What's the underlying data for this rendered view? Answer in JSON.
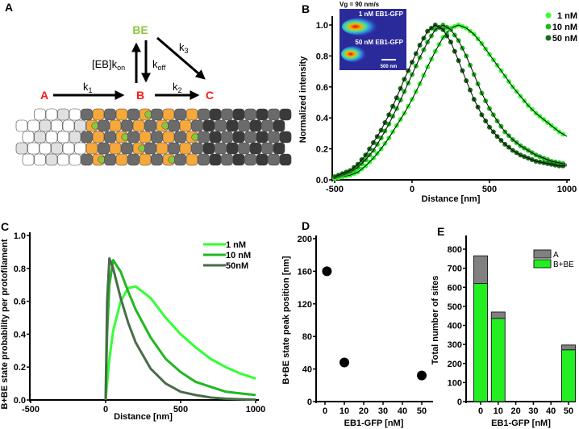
{
  "panels": {
    "a": "A",
    "b": "B",
    "c": "C",
    "d": "D",
    "e": "E"
  },
  "diagram": {
    "state_a": "A",
    "state_b": "B",
    "state_c": "C",
    "state_be": "BE",
    "k1": "k",
    "k1_sub": "1",
    "k2": "k",
    "k2_sub": "2",
    "k3": "k",
    "k3_sub": "3",
    "kon": "[EB]k",
    "kon_sub": "on",
    "koff": "k",
    "koff_sub": "off",
    "colors": {
      "red": "#ff1a1a",
      "green": "#8cc63f",
      "orange": "#f7a83a",
      "gray": "#6b6b6b",
      "dark": "#3a3a3a",
      "light": "#e6e6e6"
    }
  },
  "chart_data": [
    {
      "id": "B",
      "type": "scatter+line",
      "xlabel": "Distance [nm]",
      "ylabel": "Normalized intensity",
      "xlim": [
        -500,
        1000
      ],
      "ylim": [
        0,
        1.0
      ],
      "xticks": [
        "-500",
        "0",
        "500",
        "1000"
      ],
      "yticks": [
        "0.0",
        "0.2",
        "0.4",
        "0.6",
        "0.8",
        "1.0"
      ],
      "inset": {
        "speed": "Vg = 90 nm/s",
        "label1": "1 nM EB1-GFP",
        "label2": "50 nM EB1-GFP",
        "scale": "500 nm"
      },
      "legend_position": "top-right",
      "x": [
        -500,
        -450,
        -400,
        -350,
        -300,
        -250,
        -200,
        -150,
        -100,
        -50,
        0,
        50,
        100,
        150,
        200,
        250,
        300,
        350,
        400,
        450,
        500,
        550,
        600,
        650,
        700,
        750,
        800,
        850,
        900,
        950,
        1000
      ],
      "series": [
        {
          "name": "1 nM",
          "color": "#33ff33",
          "values": [
            0.01,
            0.02,
            0.03,
            0.05,
            0.09,
            0.14,
            0.2,
            0.27,
            0.35,
            0.43,
            0.52,
            0.62,
            0.73,
            0.83,
            0.92,
            0.98,
            1.0,
            0.98,
            0.94,
            0.88,
            0.81,
            0.74,
            0.67,
            0.6,
            0.54,
            0.48,
            0.43,
            0.39,
            0.35,
            0.31,
            0.28
          ]
        },
        {
          "name": "10 nM",
          "color": "#22b822",
          "values": [
            0.02,
            0.03,
            0.05,
            0.08,
            0.13,
            0.19,
            0.27,
            0.36,
            0.46,
            0.57,
            0.68,
            0.79,
            0.89,
            0.97,
            1.0,
            0.97,
            0.9,
            0.8,
            0.68,
            0.56,
            0.46,
            0.38,
            0.31,
            0.26,
            0.22,
            0.19,
            0.16,
            0.14,
            0.12,
            0.11,
            0.1
          ]
        },
        {
          "name": "50 nM",
          "color": "#1a6b1a",
          "values": [
            0.02,
            0.04,
            0.06,
            0.1,
            0.16,
            0.24,
            0.32,
            0.42,
            0.53,
            0.65,
            0.76,
            0.87,
            0.96,
            1.0,
            0.97,
            0.89,
            0.77,
            0.64,
            0.52,
            0.42,
            0.34,
            0.28,
            0.23,
            0.19,
            0.16,
            0.14,
            0.12,
            0.11,
            0.1,
            0.09,
            0.09
          ]
        }
      ]
    },
    {
      "id": "C",
      "type": "line",
      "xlabel": "Distance [nm]",
      "ylabel": "B+BE state probability per protofilament",
      "xlim": [
        -500,
        1000
      ],
      "ylim": [
        0,
        1.0
      ],
      "xticks": [
        "-500",
        "0",
        "500",
        "1000"
      ],
      "yticks": [
        "0.0",
        "0.2",
        "0.4",
        "0.6",
        "0.8",
        "1.0"
      ],
      "legend_position": "top-right",
      "x": [
        0,
        10,
        25,
        50,
        100,
        150,
        200,
        300,
        400,
        500,
        600,
        700,
        800,
        900,
        1000
      ],
      "series": [
        {
          "name": "1 nM",
          "color": "#33ff33",
          "values": [
            0,
            0.1,
            0.25,
            0.42,
            0.6,
            0.68,
            0.69,
            0.62,
            0.5,
            0.4,
            0.32,
            0.25,
            0.2,
            0.16,
            0.13
          ]
        },
        {
          "name": "10 nM",
          "color": "#22b822",
          "values": [
            0,
            0.4,
            0.7,
            0.85,
            0.78,
            0.66,
            0.55,
            0.38,
            0.25,
            0.17,
            0.11,
            0.08,
            0.05,
            0.04,
            0.03
          ]
        },
        {
          "name": "50nM",
          "color": "#4a6b4a",
          "values": [
            0,
            0.6,
            0.86,
            0.8,
            0.62,
            0.47,
            0.35,
            0.19,
            0.1,
            0.05,
            0.03,
            0.015,
            0.008,
            0.004,
            0.002
          ]
        }
      ]
    },
    {
      "id": "D",
      "type": "scatter",
      "xlabel": "EB1-GFP [nM]",
      "ylabel": "B+BE state peak position [nm]",
      "xlim": [
        -5,
        55
      ],
      "ylim": [
        0,
        200
      ],
      "xticks": [
        "0",
        "10",
        "20",
        "30",
        "40",
        "50"
      ],
      "yticks": [
        "0",
        "40",
        "80",
        "120",
        "160",
        "200"
      ],
      "points": [
        {
          "x": 1,
          "y": 160
        },
        {
          "x": 10,
          "y": 48
        },
        {
          "x": 50,
          "y": 32
        }
      ]
    },
    {
      "id": "E",
      "type": "bar",
      "xlabel": "EB1-GFP [nM]",
      "ylabel": "Total number of sites",
      "ylim": [
        0,
        850
      ],
      "xticks": [
        "0",
        "10",
        "20",
        "30",
        "40",
        "50"
      ],
      "yticks": [
        "0",
        "100",
        "200",
        "300",
        "400",
        "500",
        "600",
        "700",
        "800"
      ],
      "categories": [
        0,
        10,
        50
      ],
      "series": [
        {
          "name": "B+BE",
          "color": "#22ee22",
          "values": [
            620,
            437,
            272
          ]
        },
        {
          "name": "A",
          "color": "#808080",
          "values": [
            145,
            33,
            25
          ]
        }
      ],
      "legend_position": "top-right"
    }
  ]
}
